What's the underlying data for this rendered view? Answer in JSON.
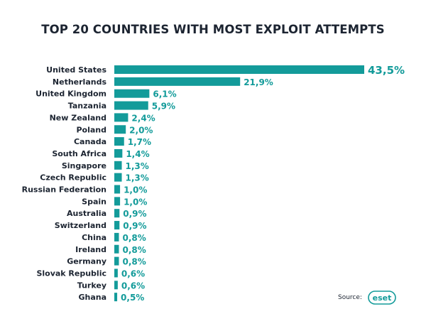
{
  "title": "TOP 20 COUNTRIES WITH MOST EXPLOIT ATTEMPTS",
  "source_label": "Source:",
  "logo_text": "eset",
  "colors": {
    "bar": "#139b9a",
    "text": "#1c2431",
    "value": "#139b9a"
  },
  "chart_data": {
    "type": "bar",
    "orientation": "horizontal",
    "title": "TOP 20 COUNTRIES WITH MOST EXPLOIT ATTEMPTS",
    "categories": [
      "United States",
      "Netherlands",
      "United Kingdom",
      "Tanzania",
      "New Zealand",
      "Poland",
      "Canada",
      "South Africa",
      "Singapore",
      "Czech Republic",
      "Russian Federation",
      "Spain",
      "Australia",
      "Switzerland",
      "China",
      "Ireland",
      "Germany",
      "Slovak Republic",
      "Turkey",
      "Ghana"
    ],
    "values": [
      43.5,
      21.9,
      6.1,
      5.9,
      2.4,
      2.0,
      1.7,
      1.4,
      1.3,
      1.3,
      1.0,
      1.0,
      0.9,
      0.9,
      0.8,
      0.8,
      0.8,
      0.6,
      0.6,
      0.5
    ],
    "value_labels": [
      "43,5%",
      "21,9%",
      "6,1%",
      "5,9%",
      "2,4%",
      "2,0%",
      "1,7%",
      "1,4%",
      "1,3%",
      "1,3%",
      "1,0%",
      "1,0%",
      "0,9%",
      "0,9%",
      "0,8%",
      "0,8%",
      "0,8%",
      "0,6%",
      "0,6%",
      "0,5%"
    ],
    "xlabel": "",
    "ylabel": "",
    "xlim": [
      0,
      43.5
    ],
    "grid": false,
    "legend": "none"
  }
}
